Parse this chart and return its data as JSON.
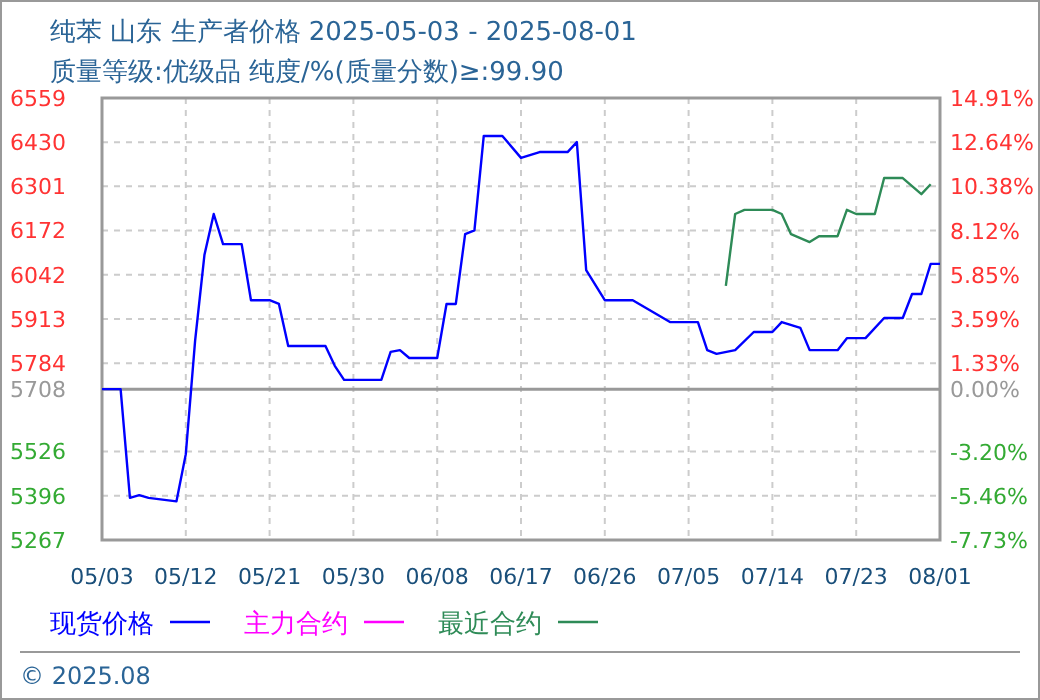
{
  "chart_data": {
    "type": "line",
    "title": "纯苯 山东 生产者价格 2025-05-03 - 2025-08-01",
    "subtitle": "质量等级:优级品 纯度/%(质量分数)≥:99.90",
    "xlim": [
      "2025-05-03",
      "2025-08-01"
    ],
    "xticks": [
      {
        "value": "2025-05-03",
        "label": "05/03"
      },
      {
        "value": "2025-05-12",
        "label": "05/12"
      },
      {
        "value": "2025-05-21",
        "label": "05/21"
      },
      {
        "value": "2025-05-30",
        "label": "05/30"
      },
      {
        "value": "2025-06-08",
        "label": "06/08"
      },
      {
        "value": "2025-06-17",
        "label": "06/17"
      },
      {
        "value": "2025-06-26",
        "label": "06/26"
      },
      {
        "value": "2025-07-05",
        "label": "07/05"
      },
      {
        "value": "2025-07-14",
        "label": "07/14"
      },
      {
        "value": "2025-07-23",
        "label": "07/23"
      },
      {
        "value": "2025-08-01",
        "label": "08/01"
      }
    ],
    "ylim": [
      5267,
      6559
    ],
    "yticks": [
      5267,
      5396,
      5526,
      5708,
      5784,
      5913,
      6042,
      6172,
      6301,
      6430,
      6559
    ],
    "y2lim": [
      -7.73,
      14.91
    ],
    "y2ticks": [
      {
        "value": -7.73,
        "label": "-7.73%"
      },
      {
        "value": -5.46,
        "label": "-5.46%"
      },
      {
        "value": -3.2,
        "label": "-3.20%"
      },
      {
        "value": 0,
        "label": "0.00%"
      },
      {
        "value": 1.33,
        "label": "1.33%"
      },
      {
        "value": 3.59,
        "label": "3.59%"
      },
      {
        "value": 5.85,
        "label": "5.85%"
      },
      {
        "value": 8.12,
        "label": "8.12%"
      },
      {
        "value": 10.38,
        "label": "10.38%"
      },
      {
        "value": 12.64,
        "label": "12.64%"
      },
      {
        "value": 14.91,
        "label": "14.91%"
      }
    ],
    "ref_lines": [
      {
        "axis": "y",
        "value": 5708,
        "color": "#999999",
        "line_style": "solid"
      }
    ],
    "grid": true,
    "legend": "bottom",
    "marker": "none",
    "line_style": "solid",
    "series": [
      {
        "name": "现货价格",
        "color": "#0000ff",
        "x": [
          "2025-05-03",
          "2025-05-05",
          "2025-05-06",
          "2025-05-07",
          "2025-05-08",
          "2025-05-11",
          "2025-05-12",
          "2025-05-13",
          "2025-05-14",
          "2025-05-15",
          "2025-05-16",
          "2025-05-18",
          "2025-05-19",
          "2025-05-21",
          "2025-05-22",
          "2025-05-23",
          "2025-05-27",
          "2025-05-28",
          "2025-05-29",
          "2025-06-02",
          "2025-06-03",
          "2025-06-04",
          "2025-06-05",
          "2025-06-08",
          "2025-06-09",
          "2025-06-10",
          "2025-06-11",
          "2025-06-12",
          "2025-06-13",
          "2025-06-15",
          "2025-06-17",
          "2025-06-19",
          "2025-06-22",
          "2025-06-23",
          "2025-06-24",
          "2025-06-26",
          "2025-06-29",
          "2025-07-03",
          "2025-07-06",
          "2025-07-07",
          "2025-07-08",
          "2025-07-10",
          "2025-07-12",
          "2025-07-14",
          "2025-07-15",
          "2025-07-17",
          "2025-07-18",
          "2025-07-21",
          "2025-07-22",
          "2025-07-24",
          "2025-07-26",
          "2025-07-28",
          "2025-07-29",
          "2025-07-30",
          "2025-07-31",
          "2025-08-01"
        ],
        "values": [
          5708,
          5708,
          5390,
          5398,
          5390,
          5380,
          5518,
          5850,
          6100,
          6220,
          6132,
          6132,
          5968,
          5968,
          5957,
          5834,
          5834,
          5776,
          5735,
          5735,
          5817,
          5822,
          5799,
          5799,
          5957,
          5957,
          6161,
          6172,
          6448,
          6448,
          6384,
          6401,
          6401,
          6430,
          6056,
          5968,
          5968,
          5904,
          5904,
          5822,
          5811,
          5822,
          5875,
          5875,
          5904,
          5887,
          5822,
          5822,
          5857,
          5857,
          5916,
          5916,
          5986,
          5986,
          6074,
          6074
        ]
      },
      {
        "name": "主力合约",
        "color": "#ff00ff"
      },
      {
        "name": "最近合约",
        "color": "#2e8b57",
        "x": [
          "2025-07-09",
          "2025-07-10",
          "2025-07-11",
          "2025-07-14",
          "2025-07-15",
          "2025-07-16",
          "2025-07-18",
          "2025-07-19",
          "2025-07-21",
          "2025-07-22",
          "2025-07-23",
          "2025-07-25",
          "2025-07-26",
          "2025-07-28",
          "2025-07-30",
          "2025-07-31"
        ],
        "values": [
          6010,
          6220,
          6232,
          6232,
          6220,
          6161,
          6138,
          6155,
          6155,
          6232,
          6220,
          6220,
          6325,
          6325,
          6278,
          6307
        ]
      }
    ],
    "annotations": [
      "© 2025.08"
    ]
  }
}
